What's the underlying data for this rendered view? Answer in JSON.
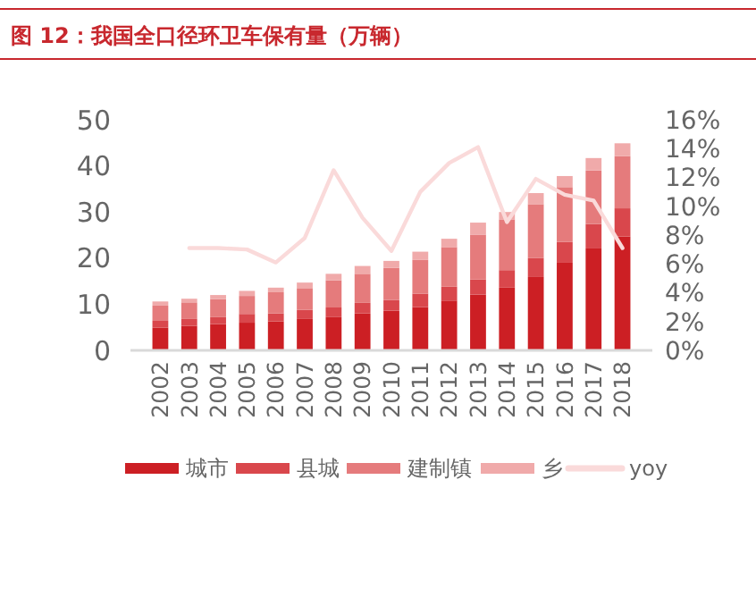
{
  "chart_data": {
    "type": "bar",
    "title": "图 12：我国全口径环卫车保有量（万辆）",
    "stacked": true,
    "categories": [
      "2002",
      "2003",
      "2004",
      "2005",
      "2006",
      "2007",
      "2008",
      "2009",
      "2010",
      "2011",
      "2012",
      "2013",
      "2014",
      "2015",
      "2016",
      "2017",
      "2018"
    ],
    "series": [
      {
        "name": "城市",
        "color": "#cc1f24",
        "values": [
          4.9,
          5.3,
          5.7,
          6.0,
          6.3,
          6.8,
          7.2,
          8.0,
          8.6,
          9.4,
          10.8,
          12.1,
          13.6,
          15.9,
          19.0,
          22.1,
          24.7
        ]
      },
      {
        "name": "县城",
        "color": "#d9474c",
        "values": [
          1.5,
          1.5,
          1.5,
          1.9,
          1.7,
          2.0,
          2.1,
          2.3,
          2.3,
          2.9,
          3.0,
          3.3,
          3.8,
          4.1,
          4.5,
          5.3,
          6.1
        ]
      },
      {
        "name": "建制镇",
        "color": "#e57b7c",
        "values": [
          3.3,
          3.6,
          3.9,
          3.9,
          4.6,
          4.7,
          5.9,
          6.3,
          7.0,
          7.3,
          8.6,
          9.7,
          11.0,
          11.7,
          11.9,
          11.6,
          11.3
        ]
      },
      {
        "name": "乡",
        "color": "#f0aaaa",
        "values": [
          0.9,
          0.8,
          0.9,
          1.1,
          1.0,
          1.2,
          1.4,
          1.7,
          1.5,
          1.8,
          1.8,
          2.6,
          1.6,
          2.4,
          2.4,
          2.7,
          2.8
        ]
      },
      {
        "name": "yoy",
        "type": "line",
        "axis": "y2",
        "color": "#fadada",
        "values": [
          null,
          7.1,
          7.1,
          7.0,
          6.1,
          7.8,
          12.5,
          9.2,
          6.9,
          11.0,
          13.0,
          14.1,
          8.9,
          11.9,
          10.8,
          10.4,
          7.1
        ]
      }
    ],
    "ylim": [
      0,
      50
    ],
    "yticks": [
      0,
      10,
      20,
      30,
      40,
      50
    ],
    "y2lim": [
      0,
      16
    ],
    "y2ticks": [
      {
        "value": 0,
        "label": "0%"
      },
      {
        "value": 2,
        "label": "2%"
      },
      {
        "value": 4,
        "label": "4%"
      },
      {
        "value": 6,
        "label": "6%"
      },
      {
        "value": 8,
        "label": "8%"
      },
      {
        "value": 10,
        "label": "10%"
      },
      {
        "value": 12,
        "label": "12%"
      },
      {
        "value": 14,
        "label": "14%"
      },
      {
        "value": 16,
        "label": "16%"
      }
    ],
    "legend": "bottom",
    "grid": false
  }
}
